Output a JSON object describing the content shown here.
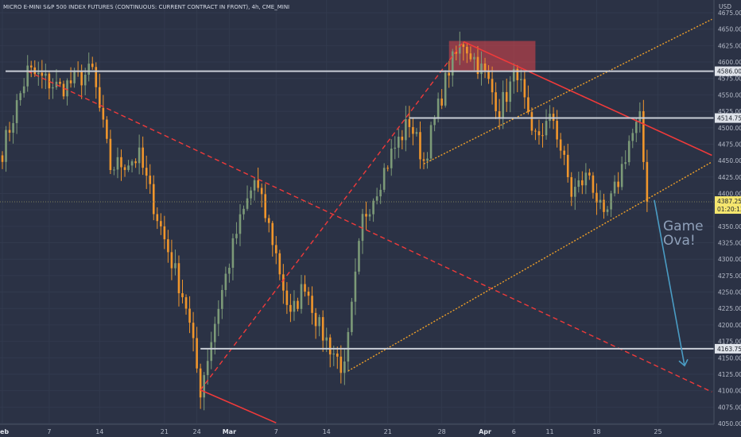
{
  "chart_data": {
    "type": "candlestick",
    "title": "MICRO E-MINI S&P 500 INDEX FUTURES (CONTINUOUS: CURRENT CONTRACT IN FRONT), 4h, CME_MINI",
    "currency": "USD",
    "ylim": [
      4050,
      4675
    ],
    "yticks": [
      4675,
      4650,
      4625,
      4600,
      4575,
      4550,
      4525,
      4500,
      4475,
      4450,
      4425,
      4400,
      4375,
      4350,
      4325,
      4300,
      4275,
      4250,
      4225,
      4200,
      4175,
      4150,
      4125,
      4100,
      4075,
      4050
    ],
    "xticks": [
      {
        "label": "Feb",
        "bold": true,
        "idx": 0
      },
      {
        "label": "7",
        "bold": false,
        "idx": 13
      },
      {
        "label": "14",
        "bold": false,
        "idx": 27
      },
      {
        "label": "21",
        "bold": false,
        "idx": 45
      },
      {
        "label": "24",
        "bold": false,
        "idx": 54
      },
      {
        "label": "Mar",
        "bold": true,
        "idx": 63
      },
      {
        "label": "7",
        "bold": false,
        "idx": 76
      },
      {
        "label": "14",
        "bold": false,
        "idx": 90
      },
      {
        "label": "21",
        "bold": false,
        "idx": 107
      },
      {
        "label": "28",
        "bold": false,
        "idx": 122
      },
      {
        "label": "Apr",
        "bold": true,
        "idx": 134
      },
      {
        "label": "6",
        "bold": false,
        "idx": 142
      },
      {
        "label": "11",
        "bold": false,
        "idx": 152
      },
      {
        "label": "18",
        "bold": false,
        "idx": 165
      },
      {
        "label": "25",
        "bold": false,
        "idx": 182
      }
    ],
    "candle_count": 195,
    "key_points": [
      {
        "idx": 0,
        "price": 4465
      },
      {
        "idx": 7,
        "price": 4586
      },
      {
        "idx": 16,
        "price": 4560
      },
      {
        "idx": 25,
        "price": 4586
      },
      {
        "idx": 30,
        "price": 4440
      },
      {
        "idx": 38,
        "price": 4455
      },
      {
        "idx": 45,
        "price": 4330
      },
      {
        "idx": 51,
        "price": 4230
      },
      {
        "idx": 55,
        "price": 4101
      },
      {
        "idx": 60,
        "price": 4230
      },
      {
        "idx": 65,
        "price": 4340
      },
      {
        "idx": 70,
        "price": 4420
      },
      {
        "idx": 75,
        "price": 4330
      },
      {
        "idx": 80,
        "price": 4210
      },
      {
        "idx": 84,
        "price": 4265
      },
      {
        "idx": 88,
        "price": 4195
      },
      {
        "idx": 95,
        "price": 4130
      },
      {
        "idx": 100,
        "price": 4360
      },
      {
        "idx": 108,
        "price": 4460
      },
      {
        "idx": 113,
        "price": 4510
      },
      {
        "idx": 117,
        "price": 4450
      },
      {
        "idx": 124,
        "price": 4590
      },
      {
        "idx": 128,
        "price": 4631
      },
      {
        "idx": 134,
        "price": 4580
      },
      {
        "idx": 138,
        "price": 4528
      },
      {
        "idx": 143,
        "price": 4588
      },
      {
        "idx": 147,
        "price": 4480
      },
      {
        "idx": 153,
        "price": 4514
      },
      {
        "idx": 158,
        "price": 4400
      },
      {
        "idx": 163,
        "price": 4430
      },
      {
        "idx": 167,
        "price": 4355
      },
      {
        "idx": 171,
        "price": 4420
      },
      {
        "idx": 174,
        "price": 4480
      },
      {
        "idx": 177,
        "price": 4510
      },
      {
        "idx": 179,
        "price": 4387
      }
    ],
    "horizontal_levels": [
      {
        "price": 4586.0,
        "label": "4586.00"
      },
      {
        "price": 4514.75,
        "label": "4514.75"
      },
      {
        "price": 4163.75,
        "label": "4163.75"
      }
    ],
    "last_price": {
      "label": "4387.25",
      "countdown": "01:20:13"
    },
    "annotation": {
      "text_line1": "Game",
      "text_line2": "Ova!"
    }
  },
  "colors": {
    "background": "#2b3245",
    "bull": "#7c9a78",
    "bear": "#f0962c",
    "red_line": "#f03a3a",
    "orange_dotted": "#f0a028",
    "level_line": "#c8cdd6",
    "arrow": "#4a9cc4",
    "price_badge": "#f5e66e",
    "red_zone": "#e0454a"
  }
}
